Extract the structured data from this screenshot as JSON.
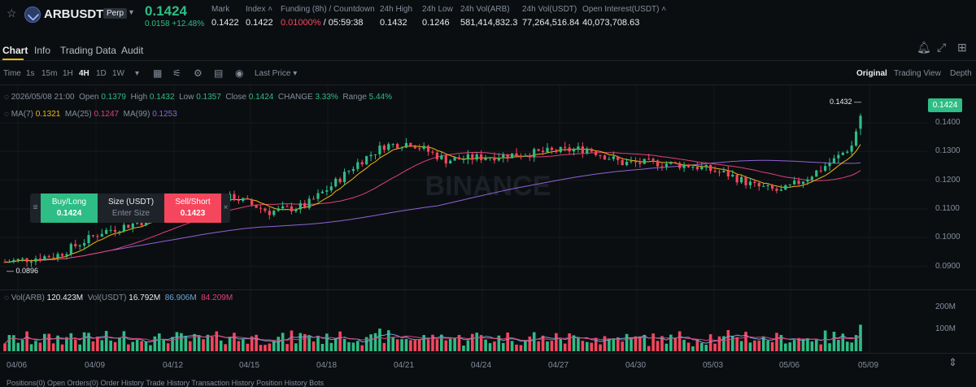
{
  "header": {
    "symbol": "ARBUSDT",
    "badge": "Perp",
    "price": "0.1424",
    "change": "0.0158 +12.48%",
    "stats": [
      {
        "label": "Mark",
        "value": "0.1422",
        "left": 260
      },
      {
        "label": "Index ˄",
        "value": "0.1422",
        "left": 302
      },
      {
        "label": "Funding (8h) / Countdown",
        "value_a": "0.01000%",
        "value_b": " / 05:59:38",
        "left": 345
      },
      {
        "label": "24h High",
        "value": "0.1432",
        "left": 467
      },
      {
        "label": "24h Low",
        "value": "0.1246",
        "left": 519
      },
      {
        "label": "24h Vol(ARB)",
        "value": "581,414,832.3",
        "left": 566
      },
      {
        "label": "24h Vol(USDT)",
        "value": "77,264,516.84",
        "left": 642
      },
      {
        "label": "Open Interest(USDT) ˄",
        "value": "40,073,708.63",
        "left": 716
      }
    ]
  },
  "tabs": [
    "Chart",
    "Info",
    "Trading Data",
    "Audit"
  ],
  "toolbar": {
    "intervals": [
      "Time",
      "1s",
      "15m",
      "1H",
      "4H",
      "1D",
      "1W"
    ],
    "active_interval": "4H",
    "price_type": "Last Price",
    "views": [
      "Original",
      "Trading View",
      "Depth"
    ],
    "active_view": "Original"
  },
  "ohlc": {
    "date": "2026/05/08 21:00",
    "open_label": "Open",
    "open": "0.1379",
    "high_label": "High",
    "high": "0.1432",
    "low_label": "Low",
    "low": "0.1357",
    "close_label": "Close",
    "close": "0.1424",
    "change_label": "CHANGE",
    "change": "3.33%",
    "range_label": "Range",
    "range": "5.44%"
  },
  "ma": {
    "ma7_label": "MA(7)",
    "ma7": "0.1321",
    "ma25_label": "MA(25)",
    "ma25": "0.1247",
    "ma99_label": "MA(99)",
    "ma99": "0.1253"
  },
  "order_panel": {
    "buy_label": "Buy/Long",
    "buy_price": "0.1424",
    "size_label": "Size (USDT)",
    "size_placeholder": "Enter Size",
    "sell_label": "Sell/Short",
    "sell_price": "0.1423"
  },
  "vol": {
    "label": "Vol(ARB)",
    "value": "120.423M",
    "usdt_label": "Vol(USDT)",
    "usdt_value": "16.792M",
    "ma_a": "86.906M",
    "ma_b": "84.209M"
  },
  "price_labels": {
    "high_mark": "0.1432",
    "low_mark": "0.0896",
    "current": "0.1424"
  },
  "watermark": "BINANCE",
  "colors": {
    "up": "#2ebd85",
    "down": "#f6465d",
    "ma7": "#f0b90b",
    "ma25": "#e0407a",
    "ma99": "#8e63d6",
    "accent": "#f0b90b"
  },
  "chart_data": {
    "type": "candlestick",
    "y_ticks": [
      "0.1400",
      "0.1300",
      "0.1200",
      "0.1100",
      "0.1000",
      "0.0900"
    ],
    "y_values": [
      0.14,
      0.13,
      0.12,
      0.11,
      0.1,
      0.09
    ],
    "ylim": [
      0.0865,
      0.1465
    ],
    "vol_ticks": [
      "200M",
      "100M"
    ],
    "vol_values": [
      200,
      100
    ],
    "vol_lim": [
      0,
      250
    ],
    "x_labels": [
      "04/06",
      "04/09",
      "04/12",
      "04/15",
      "04/18",
      "04/21",
      "04/24",
      "04/27",
      "04/30",
      "05/03",
      "05/06",
      "05/09"
    ],
    "candles": 195
  },
  "footer": "Positions(0)   Open Orders(0)   Order History   Trade History   Transaction History   Position History   Bots"
}
